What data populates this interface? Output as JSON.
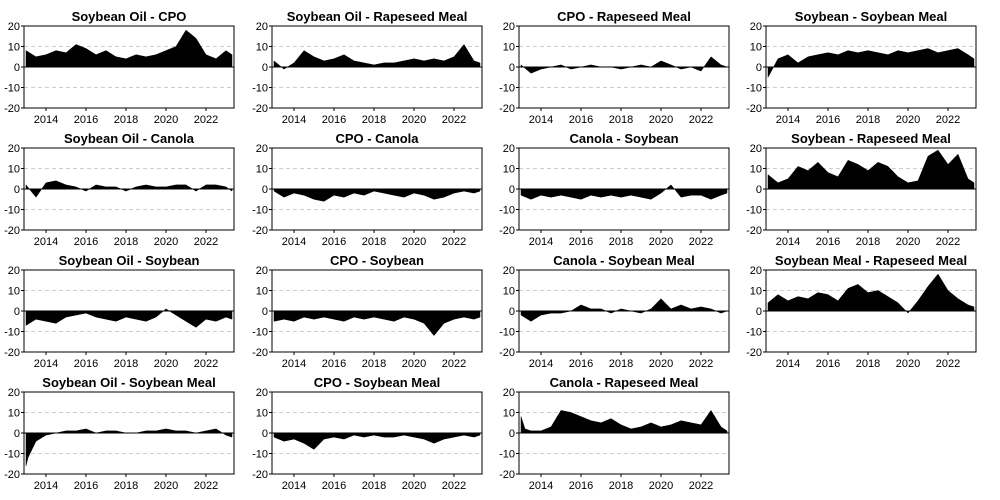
{
  "figure": {
    "panel_titles": [
      "Soybean Oil - CPO",
      "Soybean Oil - Rapeseed Meal",
      "CPO - Rapeseed Meal",
      "Soybean - Soybean Meal",
      "Soybean Oil - Canola",
      "CPO - Canola",
      "Canola - Soybean",
      "Soybean - Rapeseed Meal",
      "Soybean Oil - Soybean",
      "CPO - Soybean",
      "Canola - Soybean Meal",
      "Soybean Meal - Rapeseed Meal",
      "Soybean Oil - Soybean Meal",
      "CPO - Soybean Meal",
      "Canola - Rapeseed Meal"
    ]
  },
  "chart_data": [
    {
      "type": "area",
      "title": "Soybean Oil - CPO",
      "ylim": [
        -20,
        20
      ],
      "yticks": [
        -20,
        -10,
        0,
        10,
        20
      ],
      "xlim": [
        2012.9,
        2023.4
      ],
      "xticks": [
        2014,
        2016,
        2018,
        2020,
        2022
      ],
      "grid": true,
      "x": [
        2013.0,
        2013.5,
        2014.0,
        2014.5,
        2015.0,
        2015.5,
        2016.0,
        2016.5,
        2017.0,
        2017.5,
        2018.0,
        2018.5,
        2019.0,
        2019.5,
        2020.0,
        2020.5,
        2021.0,
        2021.5,
        2022.0,
        2022.5,
        2023.0,
        2023.3
      ],
      "y": [
        8,
        5,
        6,
        8,
        7,
        11,
        9,
        6,
        8,
        5,
        4,
        6,
        5,
        6,
        8,
        10,
        18,
        14,
        6,
        4,
        8,
        6
      ]
    },
    {
      "type": "area",
      "title": "Soybean Oil - Rapeseed Meal",
      "ylim": [
        -20,
        20
      ],
      "yticks": [
        -20,
        -10,
        0,
        10,
        20
      ],
      "xlim": [
        2012.9,
        2023.4
      ],
      "xticks": [
        2014,
        2016,
        2018,
        2020,
        2022
      ],
      "grid": true,
      "x": [
        2013.0,
        2013.5,
        2014.0,
        2014.5,
        2015.0,
        2015.5,
        2016.0,
        2016.5,
        2017.0,
        2017.5,
        2018.0,
        2018.5,
        2019.0,
        2019.5,
        2020.0,
        2020.5,
        2021.0,
        2021.5,
        2022.0,
        2022.5,
        2023.0,
        2023.3
      ],
      "y": [
        3,
        -1,
        2,
        8,
        5,
        3,
        4,
        6,
        3,
        2,
        1,
        2,
        2,
        3,
        4,
        3,
        4,
        3,
        5,
        11,
        3,
        2
      ]
    },
    {
      "type": "area",
      "title": "CPO - Rapeseed Meal",
      "ylim": [
        -20,
        20
      ],
      "yticks": [
        -20,
        -10,
        0,
        10,
        20
      ],
      "xlim": [
        2012.9,
        2023.4
      ],
      "xticks": [
        2014,
        2016,
        2018,
        2020,
        2022
      ],
      "grid": true,
      "x": [
        2013.0,
        2013.5,
        2014.0,
        2014.5,
        2015.0,
        2015.5,
        2016.0,
        2016.5,
        2017.0,
        2017.5,
        2018.0,
        2018.5,
        2019.0,
        2019.5,
        2020.0,
        2020.5,
        2021.0,
        2021.5,
        2022.0,
        2022.5,
        2023.0,
        2023.3
      ],
      "y": [
        1,
        -3,
        -1,
        0,
        1,
        -1,
        0,
        1,
        0,
        0,
        -1,
        0,
        1,
        0,
        3,
        1,
        -1,
        0,
        -2,
        5,
        1,
        0
      ]
    },
    {
      "type": "area",
      "title": "Soybean - Soybean Meal",
      "ylim": [
        -20,
        20
      ],
      "yticks": [
        -20,
        -10,
        0,
        10,
        20
      ],
      "xlim": [
        2012.9,
        2023.4
      ],
      "xticks": [
        2014,
        2016,
        2018,
        2020,
        2022
      ],
      "grid": true,
      "x": [
        2013.0,
        2013.5,
        2014.0,
        2014.5,
        2015.0,
        2015.5,
        2016.0,
        2016.5,
        2017.0,
        2017.5,
        2018.0,
        2018.5,
        2019.0,
        2019.5,
        2020.0,
        2020.5,
        2021.0,
        2021.5,
        2022.0,
        2022.5,
        2023.0,
        2023.3
      ],
      "y": [
        -5,
        4,
        6,
        2,
        5,
        6,
        7,
        6,
        8,
        7,
        8,
        7,
        6,
        8,
        7,
        8,
        9,
        7,
        8,
        9,
        6,
        4
      ]
    },
    {
      "type": "area",
      "title": "Soybean Oil - Canola",
      "ylim": [
        -20,
        20
      ],
      "yticks": [
        -20,
        -10,
        0,
        10,
        20
      ],
      "xlim": [
        2012.9,
        2023.4
      ],
      "xticks": [
        2014,
        2016,
        2018,
        2020,
        2022
      ],
      "grid": true,
      "x": [
        2013.0,
        2013.5,
        2014.0,
        2014.5,
        2015.0,
        2015.5,
        2016.0,
        2016.5,
        2017.0,
        2017.5,
        2018.0,
        2018.5,
        2019.0,
        2019.5,
        2020.0,
        2020.5,
        2021.0,
        2021.5,
        2022.0,
        2022.5,
        2023.0,
        2023.3
      ],
      "y": [
        2,
        -4,
        3,
        4,
        2,
        1,
        -1,
        2,
        1,
        1,
        -1,
        1,
        2,
        1,
        1,
        2,
        2,
        -1,
        2,
        2,
        1,
        -1
      ]
    },
    {
      "type": "area",
      "title": "CPO - Canola",
      "ylim": [
        -20,
        20
      ],
      "yticks": [
        -20,
        -10,
        0,
        10,
        20
      ],
      "xlim": [
        2012.9,
        2023.4
      ],
      "xticks": [
        2014,
        2016,
        2018,
        2020,
        2022
      ],
      "grid": true,
      "x": [
        2013.0,
        2013.5,
        2014.0,
        2014.5,
        2015.0,
        2015.5,
        2016.0,
        2016.5,
        2017.0,
        2017.5,
        2018.0,
        2018.5,
        2019.0,
        2019.5,
        2020.0,
        2020.5,
        2021.0,
        2021.5,
        2022.0,
        2022.5,
        2023.0,
        2023.3
      ],
      "y": [
        -1,
        -4,
        -2,
        -3,
        -5,
        -6,
        -3,
        -4,
        -2,
        -3,
        -1,
        -2,
        -3,
        -4,
        -2,
        -3,
        -5,
        -4,
        -2,
        -1,
        -2,
        -1
      ]
    },
    {
      "type": "area",
      "title": "Canola - Soybean",
      "ylim": [
        -20,
        20
      ],
      "yticks": [
        -20,
        -10,
        0,
        10,
        20
      ],
      "xlim": [
        2012.9,
        2023.4
      ],
      "xticks": [
        2014,
        2016,
        2018,
        2020,
        2022
      ],
      "grid": true,
      "x": [
        2013.0,
        2013.5,
        2014.0,
        2014.5,
        2015.0,
        2015.5,
        2016.0,
        2016.5,
        2017.0,
        2017.5,
        2018.0,
        2018.5,
        2019.0,
        2019.5,
        2020.0,
        2020.5,
        2021.0,
        2021.5,
        2022.0,
        2022.5,
        2023.0,
        2023.3
      ],
      "y": [
        -3,
        -5,
        -3,
        -4,
        -3,
        -4,
        -5,
        -3,
        -4,
        -3,
        -4,
        -3,
        -4,
        -5,
        -2,
        2,
        -4,
        -3,
        -3,
        -5,
        -3,
        -2
      ]
    },
    {
      "type": "area",
      "title": "Soybean - Rapeseed Meal",
      "ylim": [
        -20,
        20
      ],
      "yticks": [
        -20,
        -10,
        0,
        10,
        20
      ],
      "xlim": [
        2012.9,
        2023.4
      ],
      "xticks": [
        2014,
        2016,
        2018,
        2020,
        2022
      ],
      "grid": true,
      "x": [
        2013.0,
        2013.5,
        2014.0,
        2014.5,
        2015.0,
        2015.5,
        2016.0,
        2016.5,
        2017.0,
        2017.5,
        2018.0,
        2018.5,
        2019.0,
        2019.5,
        2020.0,
        2020.5,
        2021.0,
        2021.5,
        2022.0,
        2022.5,
        2023.0,
        2023.3
      ],
      "y": [
        7,
        3,
        5,
        11,
        9,
        13,
        8,
        6,
        14,
        12,
        9,
        13,
        11,
        6,
        3,
        4,
        16,
        19,
        12,
        17,
        5,
        3
      ]
    },
    {
      "type": "area",
      "title": "Soybean Oil - Soybean",
      "ylim": [
        -20,
        20
      ],
      "yticks": [
        -20,
        -10,
        0,
        10,
        20
      ],
      "xlim": [
        2012.9,
        2023.4
      ],
      "xticks": [
        2014,
        2016,
        2018,
        2020,
        2022
      ],
      "grid": true,
      "x": [
        2013.0,
        2013.5,
        2014.0,
        2014.5,
        2015.0,
        2015.5,
        2016.0,
        2016.5,
        2017.0,
        2017.5,
        2018.0,
        2018.5,
        2019.0,
        2019.5,
        2020.0,
        2020.5,
        2021.0,
        2021.5,
        2022.0,
        2022.5,
        2023.0,
        2023.3
      ],
      "y": [
        -7,
        -4,
        -5,
        -6,
        -3,
        -2,
        -1,
        -3,
        -4,
        -5,
        -3,
        -4,
        -5,
        -3,
        1,
        -2,
        -5,
        -8,
        -4,
        -5,
        -3,
        -4
      ]
    },
    {
      "type": "area",
      "title": "CPO - Soybean",
      "ylim": [
        -20,
        20
      ],
      "yticks": [
        -20,
        -10,
        0,
        10,
        20
      ],
      "xlim": [
        2012.9,
        2023.4
      ],
      "xticks": [
        2014,
        2016,
        2018,
        2020,
        2022
      ],
      "grid": true,
      "x": [
        2013.0,
        2013.5,
        2014.0,
        2014.5,
        2015.0,
        2015.5,
        2016.0,
        2016.5,
        2017.0,
        2017.5,
        2018.0,
        2018.5,
        2019.0,
        2019.5,
        2020.0,
        2020.5,
        2021.0,
        2021.5,
        2022.0,
        2022.5,
        2023.0,
        2023.3
      ],
      "y": [
        -5,
        -4,
        -5,
        -3,
        -4,
        -3,
        -4,
        -5,
        -3,
        -4,
        -3,
        -4,
        -5,
        -3,
        -4,
        -6,
        -12,
        -6,
        -4,
        -3,
        -4,
        -3
      ]
    },
    {
      "type": "area",
      "title": "Canola - Soybean Meal",
      "ylim": [
        -20,
        20
      ],
      "yticks": [
        -20,
        -10,
        0,
        10,
        20
      ],
      "xlim": [
        2012.9,
        2023.4
      ],
      "xticks": [
        2014,
        2016,
        2018,
        2020,
        2022
      ],
      "grid": true,
      "x": [
        2013.0,
        2013.5,
        2014.0,
        2014.5,
        2015.0,
        2015.5,
        2016.0,
        2016.5,
        2017.0,
        2017.5,
        2018.0,
        2018.5,
        2019.0,
        2019.5,
        2020.0,
        2020.5,
        2021.0,
        2021.5,
        2022.0,
        2022.5,
        2023.0,
        2023.3
      ],
      "y": [
        -2,
        -5,
        -2,
        -1,
        -1,
        0,
        3,
        1,
        1,
        -1,
        1,
        0,
        -1,
        1,
        6,
        1,
        3,
        1,
        2,
        1,
        -1,
        0
      ]
    },
    {
      "type": "area",
      "title": "Soybean Meal - Rapeseed Meal",
      "ylim": [
        -20,
        20
      ],
      "yticks": [
        -20,
        -10,
        0,
        10,
        20
      ],
      "xlim": [
        2012.9,
        2023.4
      ],
      "xticks": [
        2014,
        2016,
        2018,
        2020,
        2022
      ],
      "grid": true,
      "x": [
        2013.0,
        2013.5,
        2014.0,
        2014.5,
        2015.0,
        2015.5,
        2016.0,
        2016.5,
        2017.0,
        2017.5,
        2018.0,
        2018.5,
        2019.0,
        2019.5,
        2020.0,
        2020.5,
        2021.0,
        2021.5,
        2022.0,
        2022.5,
        2023.0,
        2023.3
      ],
      "y": [
        4,
        8,
        5,
        7,
        6,
        9,
        8,
        5,
        11,
        13,
        9,
        10,
        7,
        4,
        -1,
        5,
        12,
        18,
        10,
        6,
        3,
        2
      ]
    },
    {
      "type": "area",
      "title": "Soybean Oil - Soybean Meal",
      "ylim": [
        -20,
        20
      ],
      "yticks": [
        -20,
        -10,
        0,
        10,
        20
      ],
      "xlim": [
        2012.9,
        2023.4
      ],
      "xticks": [
        2014,
        2016,
        2018,
        2020,
        2022
      ],
      "grid": true,
      "x": [
        2013.0,
        2013.1,
        2013.3,
        2013.5,
        2014.0,
        2014.5,
        2015.0,
        2015.5,
        2016.0,
        2016.5,
        2017.0,
        2017.5,
        2018.0,
        2018.5,
        2019.0,
        2019.5,
        2020.0,
        2020.5,
        2021.0,
        2021.5,
        2022.0,
        2022.5,
        2023.0,
        2023.3
      ],
      "y": [
        -16,
        -12,
        -8,
        -4,
        -1,
        0,
        1,
        1,
        2,
        0,
        1,
        1,
        0,
        0,
        1,
        1,
        2,
        1,
        1,
        0,
        1,
        2,
        -1,
        -2
      ]
    },
    {
      "type": "area",
      "title": "CPO - Soybean Meal",
      "ylim": [
        -20,
        20
      ],
      "yticks": [
        -20,
        -10,
        0,
        10,
        20
      ],
      "xlim": [
        2012.9,
        2023.4
      ],
      "xticks": [
        2014,
        2016,
        2018,
        2020,
        2022
      ],
      "grid": true,
      "x": [
        2013.0,
        2013.5,
        2014.0,
        2014.5,
        2015.0,
        2015.5,
        2016.0,
        2016.5,
        2017.0,
        2017.5,
        2018.0,
        2018.5,
        2019.0,
        2019.5,
        2020.0,
        2020.5,
        2021.0,
        2021.5,
        2022.0,
        2022.5,
        2023.0,
        2023.3
      ],
      "y": [
        -2,
        -4,
        -3,
        -5,
        -8,
        -3,
        -2,
        -3,
        -1,
        -2,
        -1,
        -2,
        -2,
        -1,
        -2,
        -3,
        -5,
        -3,
        -2,
        -1,
        -2,
        -1
      ]
    },
    {
      "type": "area",
      "title": "Canola - Rapeseed Meal",
      "ylim": [
        -20,
        20
      ],
      "yticks": [
        -20,
        -10,
        0,
        10,
        20
      ],
      "xlim": [
        2012.9,
        2023.4
      ],
      "xticks": [
        2014,
        2016,
        2018,
        2020,
        2022
      ],
      "grid": true,
      "x": [
        2013.0,
        2013.2,
        2013.5,
        2014.0,
        2014.5,
        2015.0,
        2015.5,
        2016.0,
        2016.5,
        2017.0,
        2017.5,
        2018.0,
        2018.5,
        2019.0,
        2019.5,
        2020.0,
        2020.5,
        2021.0,
        2021.5,
        2022.0,
        2022.5,
        2023.0,
        2023.3
      ],
      "y": [
        8,
        2,
        1,
        1,
        3,
        11,
        10,
        8,
        6,
        5,
        7,
        4,
        2,
        3,
        5,
        3,
        4,
        6,
        5,
        4,
        11,
        3,
        1
      ]
    }
  ]
}
